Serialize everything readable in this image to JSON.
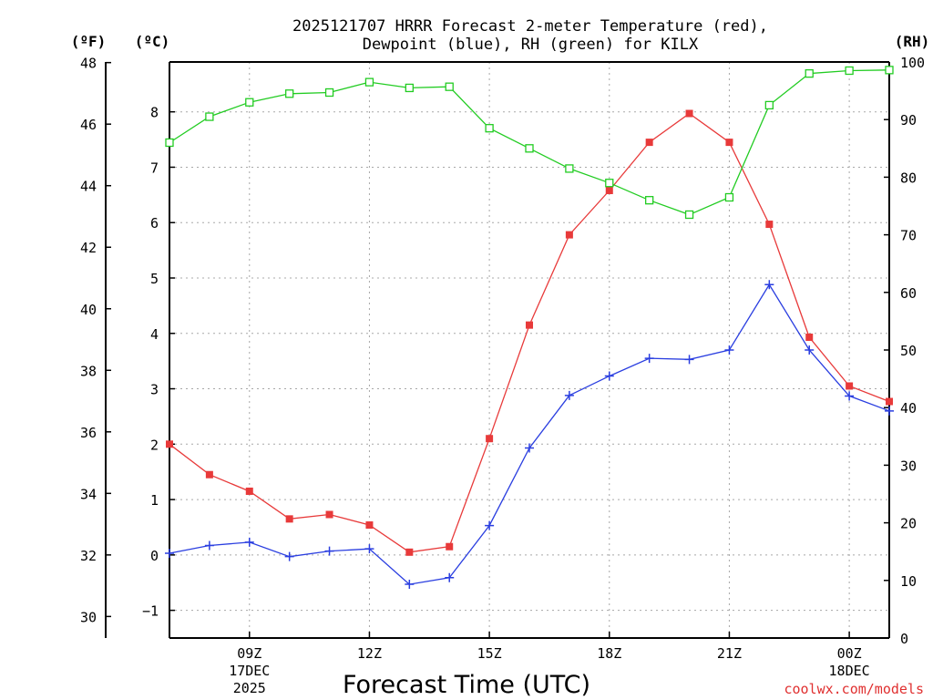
{
  "chart_data": {
    "type": "line",
    "title_line1": "2025121707 HRRR Forecast 2-meter Temperature (red),",
    "title_line2": "Dewpoint (blue), RH (green) for KILX",
    "xlabel": "Forecast Time (UTC)",
    "credit": "coolwx.com/models",
    "units": {
      "fahrenheit": "(ºF)",
      "celsius": "(ºC)",
      "rh": "(RH)"
    },
    "x": [
      7,
      8,
      9,
      10,
      11,
      12,
      13,
      14,
      15,
      16,
      17,
      18,
      19,
      20,
      21,
      22,
      23,
      24,
      25
    ],
    "xlim": [
      7,
      25
    ],
    "x_ticks": [
      {
        "x": 9,
        "label": "09Z",
        "sub1": "17DEC",
        "sub2": "2025"
      },
      {
        "x": 12,
        "label": "12Z",
        "sub1": "",
        "sub2": ""
      },
      {
        "x": 15,
        "label": "15Z",
        "sub1": "",
        "sub2": ""
      },
      {
        "x": 18,
        "label": "18Z",
        "sub1": "",
        "sub2": ""
      },
      {
        "x": 21,
        "label": "21Z",
        "sub1": "",
        "sub2": ""
      },
      {
        "x": 24,
        "label": "00Z",
        "sub1": "18DEC",
        "sub2": ""
      }
    ],
    "ylim_c": [
      -1.5,
      8.9
    ],
    "yticks_c": [
      -1,
      0,
      1,
      2,
      3,
      4,
      5,
      6,
      7,
      8
    ],
    "ytick_labels_c": [
      "−1",
      "0",
      "1",
      "2",
      "3",
      "4",
      "5",
      "6",
      "7",
      "8"
    ],
    "yticks_f": [
      30,
      32,
      34,
      36,
      38,
      40,
      42,
      44,
      46,
      48
    ],
    "ytick_labels_f": [
      "30",
      "32",
      "34",
      "36",
      "38",
      "40",
      "42",
      "44",
      "46",
      "48"
    ],
    "ylim_rh": [
      0,
      100
    ],
    "yticks_rh": [
      0,
      10,
      20,
      30,
      40,
      50,
      60,
      70,
      80,
      90,
      100
    ],
    "ytick_labels_rh": [
      "0",
      "10",
      "20",
      "30",
      "40",
      "50",
      "60",
      "70",
      "80",
      "90",
      "100"
    ],
    "series": [
      {
        "name": "Temperature",
        "axis": "celsius",
        "color": "#e83a3a",
        "marker": "filled-square",
        "values": [
          2.0,
          1.45,
          1.15,
          0.65,
          0.73,
          0.54,
          0.05,
          0.15,
          2.1,
          4.15,
          5.78,
          6.58,
          7.45,
          7.97,
          7.45,
          5.97,
          3.93,
          3.05,
          2.77
        ]
      },
      {
        "name": "Dewpoint",
        "axis": "celsius",
        "color": "#2a3ee0",
        "marker": "plus",
        "values": [
          0.03,
          0.17,
          0.23,
          -0.03,
          0.07,
          0.11,
          -0.53,
          -0.41,
          0.53,
          1.93,
          2.88,
          3.23,
          3.55,
          3.53,
          3.7,
          4.88,
          3.7,
          2.87,
          2.6
        ]
      },
      {
        "name": "RH",
        "axis": "rh",
        "color": "#22cc22",
        "marker": "open-square",
        "values": [
          86.0,
          90.5,
          93.0,
          94.5,
          94.7,
          96.5,
          95.5,
          95.7,
          88.5,
          85.0,
          81.5,
          79.0,
          76.0,
          73.5,
          76.5,
          92.5,
          98.0,
          98.5,
          98.6
        ]
      }
    ]
  }
}
